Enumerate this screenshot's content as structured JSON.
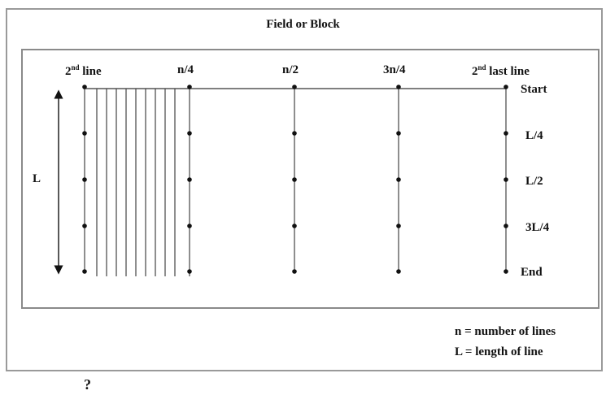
{
  "title": "Field or Block",
  "top_labels": {
    "second_line": {
      "prefix": "2",
      "sup": "nd",
      "suffix": " line"
    },
    "n4": "n/4",
    "n2": "n/2",
    "n34": "3n/4",
    "second_last": {
      "prefix": "2",
      "sup": "nd",
      "suffix": " last line"
    }
  },
  "right_labels": [
    "Start",
    "L/4",
    "L/2",
    "3L/4",
    "End"
  ],
  "length_label": "L",
  "legend": {
    "n_def": "n = number of lines",
    "l_def": "L = length of line"
  },
  "footer_mark": "?"
}
